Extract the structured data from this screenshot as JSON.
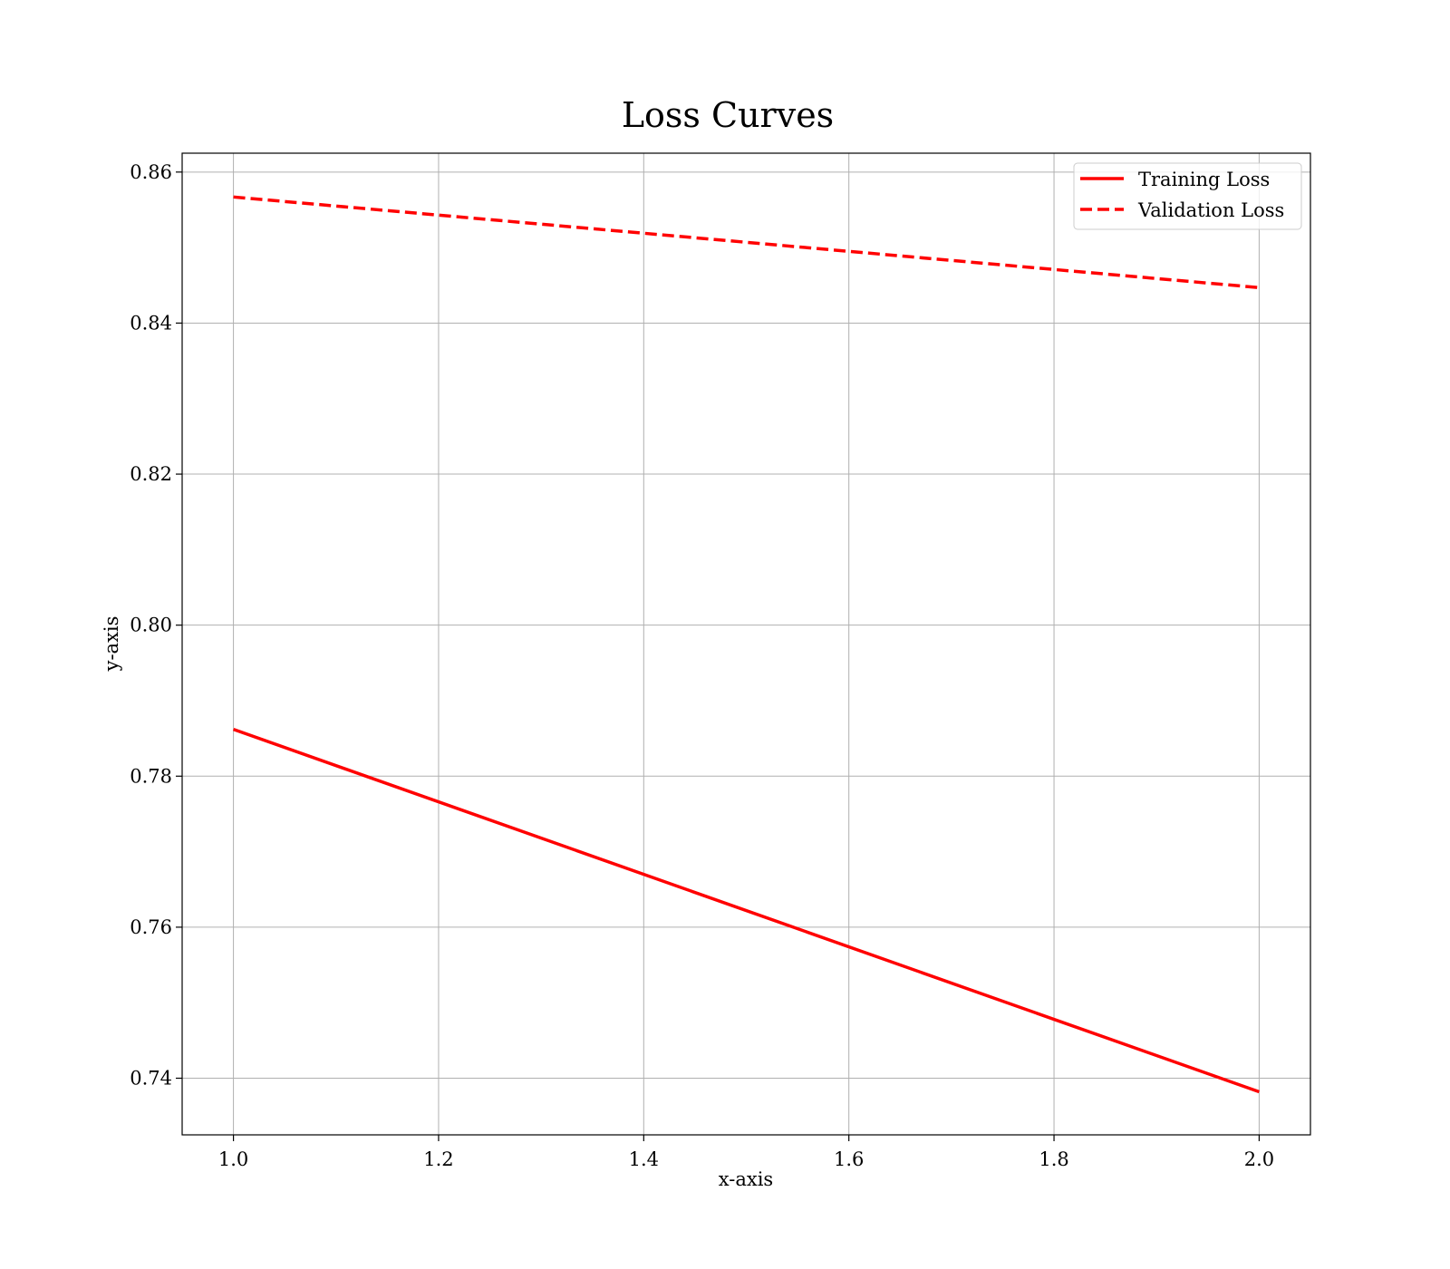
{
  "chart_data": {
    "type": "line",
    "title": "Loss Curves",
    "xlabel": "x-axis",
    "ylabel": "y-axis",
    "xlim": [
      0.95,
      2.05
    ],
    "ylim": [
      0.7325,
      0.8625
    ],
    "x_ticks": [
      1.0,
      1.2,
      1.4,
      1.6,
      1.8,
      2.0
    ],
    "x_tick_labels": [
      "1.0",
      "1.2",
      "1.4",
      "1.6",
      "1.8",
      "2.0"
    ],
    "y_ticks": [
      0.74,
      0.76,
      0.78,
      0.8,
      0.82,
      0.84,
      0.86
    ],
    "y_tick_labels": [
      "0.74",
      "0.76",
      "0.78",
      "0.80",
      "0.82",
      "0.84",
      "0.86"
    ],
    "grid": true,
    "legend_position": "top-right",
    "series": [
      {
        "name": "Training Loss",
        "x": [
          1.0,
          2.0
        ],
        "y": [
          0.7862,
          0.7382
        ],
        "color": "#ff0000",
        "line_style": "solid"
      },
      {
        "name": "Validation Loss",
        "x": [
          1.0,
          2.0
        ],
        "y": [
          0.8567,
          0.8447
        ],
        "color": "#ff0000",
        "line_style": "dashed"
      }
    ]
  }
}
